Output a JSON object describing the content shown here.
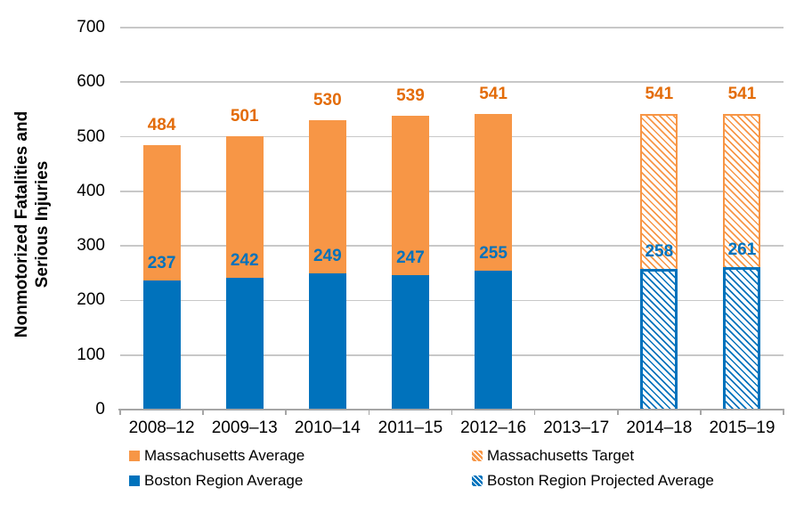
{
  "chart_data": {
    "type": "bar",
    "stacked": true,
    "title": "",
    "ylabel": "Nonmotorized Fatalities and Serious Injuries",
    "ylabel_lines": [
      "Nonmotorized Fatalities and",
      "Serious Injuries"
    ],
    "xlabel": "",
    "ylim": [
      0,
      700
    ],
    "yticks": [
      0,
      100,
      200,
      300,
      400,
      500,
      600,
      700
    ],
    "grid": "horizontal",
    "legend_position": "bottom-two-columns",
    "categories": [
      "2008–12",
      "2009–13",
      "2010–14",
      "2011–15",
      "2012–16",
      "2013–17",
      "2014–18",
      "2015–19"
    ],
    "series": [
      {
        "name": "Massachusetts Average",
        "role": "total",
        "pattern": "solid",
        "color": "#F79646",
        "label_color": "#E36C0A",
        "values": [
          484,
          501,
          530,
          539,
          541,
          null,
          null,
          null
        ]
      },
      {
        "name": "Massachusetts Target",
        "role": "total",
        "pattern": "hatched",
        "color": "#F79646",
        "label_color": "#E36C0A",
        "values": [
          null,
          null,
          null,
          null,
          null,
          null,
          541,
          541
        ]
      },
      {
        "name": "Boston Region Average",
        "role": "bottom",
        "pattern": "solid",
        "color": "#0072BC",
        "label_color": "#0072BC",
        "values": [
          237,
          242,
          249,
          247,
          255,
          null,
          null,
          null
        ]
      },
      {
        "name": "Boston Region Projected Average",
        "role": "bottom",
        "pattern": "hatched",
        "color": "#0072BC",
        "label_color": "#0072BC",
        "values": [
          null,
          null,
          null,
          null,
          null,
          null,
          258,
          261
        ]
      }
    ]
  },
  "legend": {
    "columns": [
      [
        {
          "label": "Massachusetts Average",
          "swatch": "orange-solid"
        },
        {
          "label": "Boston Region Average",
          "swatch": "blue-solid"
        }
      ],
      [
        {
          "label": "Massachusetts Target",
          "swatch": "orange-hatched"
        },
        {
          "label": "Boston Region Projected Average",
          "swatch": "blue-hatched"
        }
      ]
    ]
  },
  "colors": {
    "orange_bar": "#F79646",
    "blue_bar": "#0072BC",
    "orange_value_label": "#E36C0A",
    "blue_value_label": "#0072BC",
    "gridline": "#C8C8C8",
    "axis_line": "#A6A6A6",
    "text": "#000000"
  }
}
